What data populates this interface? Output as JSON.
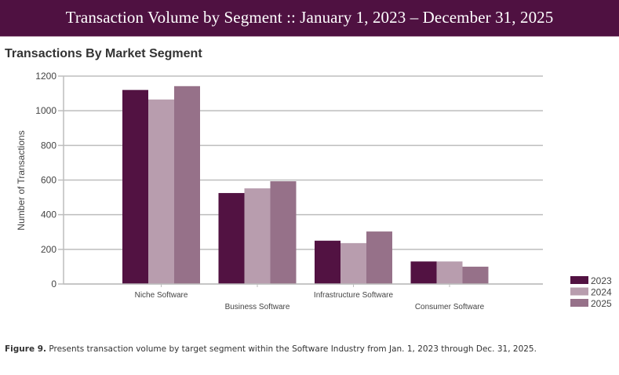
{
  "header": {
    "title": "Transaction Volume by Segment :: January 1, 2023 – December 31, 2025"
  },
  "caption": {
    "label": "Figure 9.",
    "text": " Presents transaction volume by target segment within the Software Industry from Jan. 1, 2023 through Dec. 31, 2025."
  },
  "chart_data": {
    "type": "bar",
    "title": "Transactions By Market Segment",
    "xlabel": "",
    "ylabel": "Number of Transactions",
    "ylim": [
      0,
      1200
    ],
    "yticks": [
      0,
      200,
      400,
      600,
      800,
      1000,
      1200
    ],
    "grid": true,
    "legend_position": "bottom-right",
    "categories": [
      "Niche Software",
      "Business Software",
      "Infrastructure Software",
      "Consumer Software"
    ],
    "series": [
      {
        "name": "2023",
        "color": "#521242",
        "values": [
          1120,
          525,
          250,
          130
        ]
      },
      {
        "name": "2024",
        "color": "#b89dae",
        "values": [
          1065,
          552,
          236,
          130
        ]
      },
      {
        "name": "2025",
        "color": "#967189",
        "values": [
          1142,
          593,
          303,
          100
        ]
      }
    ]
  }
}
